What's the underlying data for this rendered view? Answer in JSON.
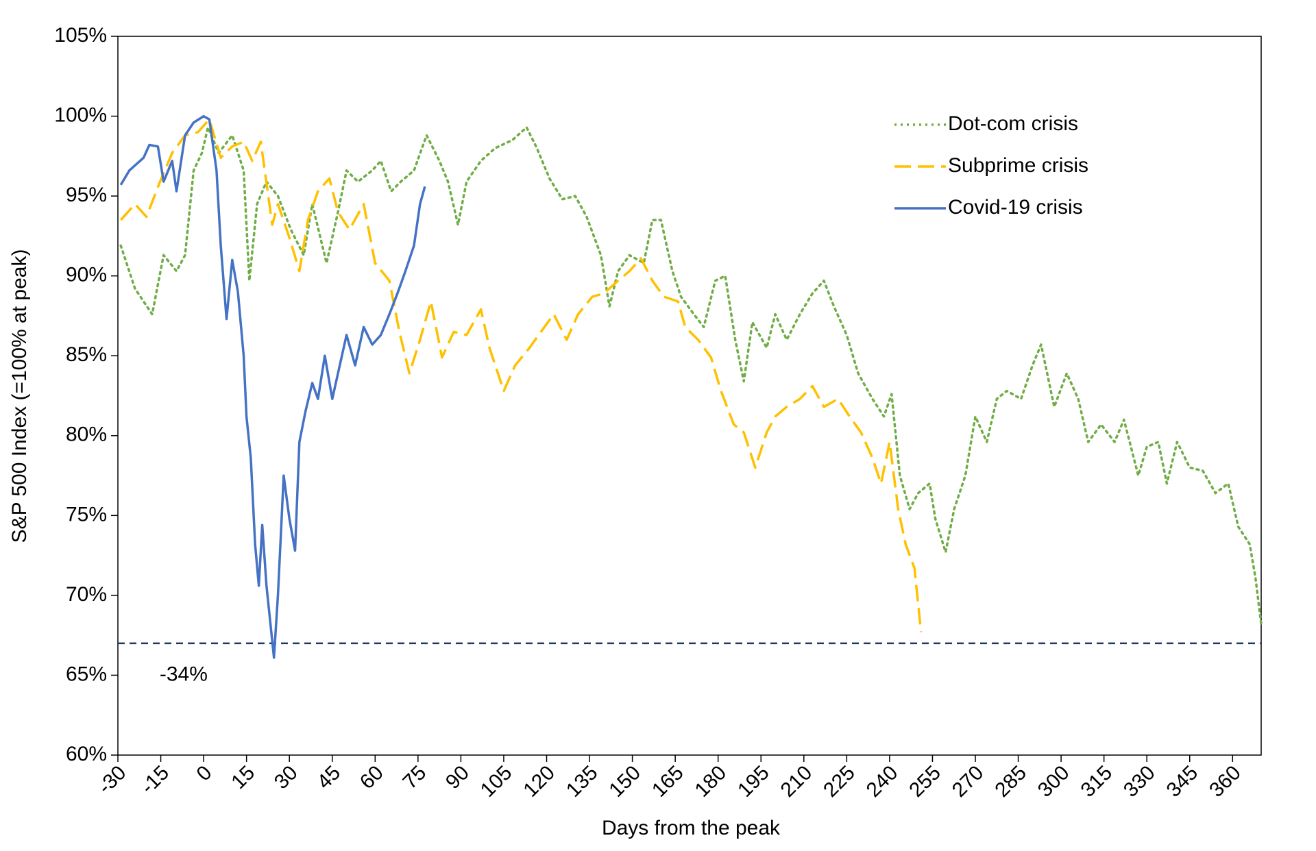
{
  "chart_data": {
    "type": "line",
    "xlabel": "Days from the peak",
    "ylabel": "S&P 500 Index (=100% at peak)",
    "xlim": [
      -30,
      370
    ],
    "ylim": [
      60,
      105
    ],
    "xticks": [
      -30,
      -15,
      0,
      15,
      30,
      45,
      60,
      75,
      90,
      105,
      120,
      135,
      150,
      165,
      180,
      195,
      210,
      225,
      240,
      255,
      270,
      285,
      300,
      315,
      330,
      345,
      360
    ],
    "yticks": [
      {
        "value": 60,
        "label": "60%"
      },
      {
        "value": 65,
        "label": "65%"
      },
      {
        "value": 70,
        "label": "70%"
      },
      {
        "value": 75,
        "label": "75%"
      },
      {
        "value": 80,
        "label": "80%"
      },
      {
        "value": 85,
        "label": "85%"
      },
      {
        "value": 90,
        "label": "90%"
      },
      {
        "value": 95,
        "label": "95%"
      },
      {
        "value": 100,
        "label": "100%"
      },
      {
        "value": 105,
        "label": "105%"
      }
    ],
    "legend": "upper right",
    "reference_line": 67,
    "reference_color": "#1f3864",
    "annotations": [
      {
        "text": "-34%",
        "x": -7,
        "y": 65
      }
    ],
    "series": [
      {
        "name": "Dot-com crisis",
        "color": "#70ad47",
        "style": "dotted",
        "x": [
          -29,
          -24,
          -18,
          -14,
          -9.5,
          -6.5,
          -3.5,
          -0.6,
          1.5,
          5.3,
          10,
          14,
          16,
          18.7,
          22,
          26,
          30.5,
          35,
          38,
          43,
          47,
          50,
          54,
          59,
          62,
          65.6,
          69,
          73.6,
          78,
          82.5,
          85.5,
          89,
          92,
          97,
          102,
          108,
          113,
          116.6,
          121,
          125.5,
          130,
          134,
          139,
          142,
          145,
          149,
          154,
          157,
          160,
          164,
          167,
          171.5,
          175,
          179,
          182.5,
          186,
          189,
          192,
          197,
          200,
          204,
          208.6,
          213,
          217,
          220.5,
          225,
          229,
          234,
          238,
          240.7,
          243.6,
          247,
          250,
          254,
          256,
          259.6,
          262.6,
          266.5,
          270,
          274,
          277.5,
          281,
          286,
          290,
          293,
          297.6,
          302,
          306,
          309.5,
          314,
          318.7,
          322,
          327,
          330,
          334,
          337,
          340.6,
          345,
          349.6,
          354,
          358.5,
          362,
          366,
          368,
          370
        ],
        "values": [
          91.9,
          89.2,
          87.6,
          91.3,
          90.3,
          91.3,
          96.6,
          97.7,
          99.3,
          97.7,
          98.8,
          96.6,
          89.7,
          94.5,
          95.9,
          95,
          92.9,
          91.3,
          94.5,
          90.8,
          94,
          96.6,
          95.9,
          96.6,
          97.2,
          95.3,
          95.9,
          96.6,
          98.8,
          97.2,
          95.9,
          93.2,
          95.9,
          97.2,
          98,
          98.5,
          99.3,
          98,
          96.1,
          94.8,
          95,
          93.7,
          91.3,
          88.1,
          90.3,
          91.3,
          90.8,
          93.5,
          93.5,
          90.3,
          88.7,
          87.6,
          86.8,
          89.7,
          90,
          86,
          83.4,
          87.1,
          85.5,
          87.6,
          86,
          87.6,
          88.9,
          89.7,
          88.1,
          86.3,
          83.9,
          82.3,
          81.2,
          82.6,
          77.5,
          75.4,
          76.4,
          77,
          74.8,
          72.7,
          75.4,
          77.5,
          81.2,
          79.6,
          82.3,
          82.8,
          82.3,
          84.4,
          85.7,
          81.8,
          83.9,
          82.3,
          79.6,
          80.7,
          79.6,
          81,
          77.5,
          79.3,
          79.6,
          77,
          79.6,
          78,
          77.8,
          76.4,
          77,
          74.3,
          73.2,
          71.1,
          68.2
        ]
      },
      {
        "name": "Subprime crisis",
        "color": "#ffc000",
        "style": "dashed",
        "x": [
          -29,
          -24,
          -20,
          -15.5,
          -11,
          -6.5,
          -2,
          2,
          6,
          10,
          14,
          17,
          20,
          24,
          26,
          30,
          33.5,
          36.5,
          40,
          44,
          47,
          51,
          56,
          60,
          65,
          68.5,
          72,
          75.7,
          79.5,
          83.4,
          87.5,
          92,
          97,
          100,
          105,
          109,
          114,
          118,
          122.5,
          127,
          131,
          136,
          140,
          145,
          149,
          153,
          157,
          161,
          166,
          168.5,
          173,
          177.5,
          181,
          185.5,
          189,
          193,
          197,
          200,
          204,
          208.6,
          213,
          217,
          222,
          226,
          230,
          234,
          237,
          240,
          243,
          245.6,
          248.7,
          251
        ],
        "values": [
          93.5,
          94.5,
          93.7,
          95.8,
          97.7,
          98.8,
          99,
          99.8,
          97.4,
          98.1,
          98.4,
          97.2,
          98.4,
          93.2,
          94.5,
          92.4,
          90.3,
          93.5,
          95.3,
          96.1,
          94,
          92.9,
          94.5,
          90.8,
          89.7,
          86.5,
          83.9,
          86,
          88.4,
          84.9,
          86.5,
          86.3,
          87.9,
          85.5,
          82.8,
          84.4,
          85.5,
          86.5,
          87.6,
          86,
          87.6,
          88.7,
          88.9,
          89.7,
          90.3,
          91.1,
          89.7,
          88.7,
          88.4,
          86.8,
          86,
          84.9,
          82.8,
          80.7,
          80.2,
          78,
          80.2,
          81.2,
          81.8,
          82.3,
          83.1,
          81.8,
          82.3,
          81.2,
          80.2,
          78.6,
          77,
          79.6,
          75.4,
          73.2,
          71.7,
          67.7
        ]
      },
      {
        "name": "Covid-19 crisis",
        "color": "#4472c4",
        "style": "solid",
        "x": [
          -29,
          -26,
          -21,
          -19,
          -16,
          -14,
          -11,
          -9.5,
          -6.5,
          -3.5,
          0,
          2,
          4.5,
          6,
          8,
          10,
          12,
          14,
          15,
          16.5,
          18,
          19.3,
          20.5,
          22,
          24.6,
          26,
          28,
          30,
          32,
          33.5,
          35.6,
          38,
          40,
          42.4,
          45,
          47,
          50,
          53,
          56,
          59,
          62,
          65,
          68,
          70.6,
          73.6,
          75.7,
          77.4
        ],
        "values": [
          95.7,
          96.6,
          97.4,
          98.2,
          98.1,
          95.9,
          97.2,
          95.3,
          98.8,
          99.6,
          100,
          99.8,
          96.6,
          91.9,
          87.3,
          91,
          89,
          85,
          81.2,
          78.6,
          73.2,
          70.6,
          74.4,
          70.6,
          66.1,
          70,
          77.5,
          74.8,
          72.8,
          79.6,
          81.5,
          83.3,
          82.3,
          85,
          82.3,
          83.9,
          86.3,
          84.4,
          86.8,
          85.7,
          86.3,
          87.6,
          89,
          90.3,
          91.9,
          94.5,
          95.6
        ]
      }
    ]
  }
}
